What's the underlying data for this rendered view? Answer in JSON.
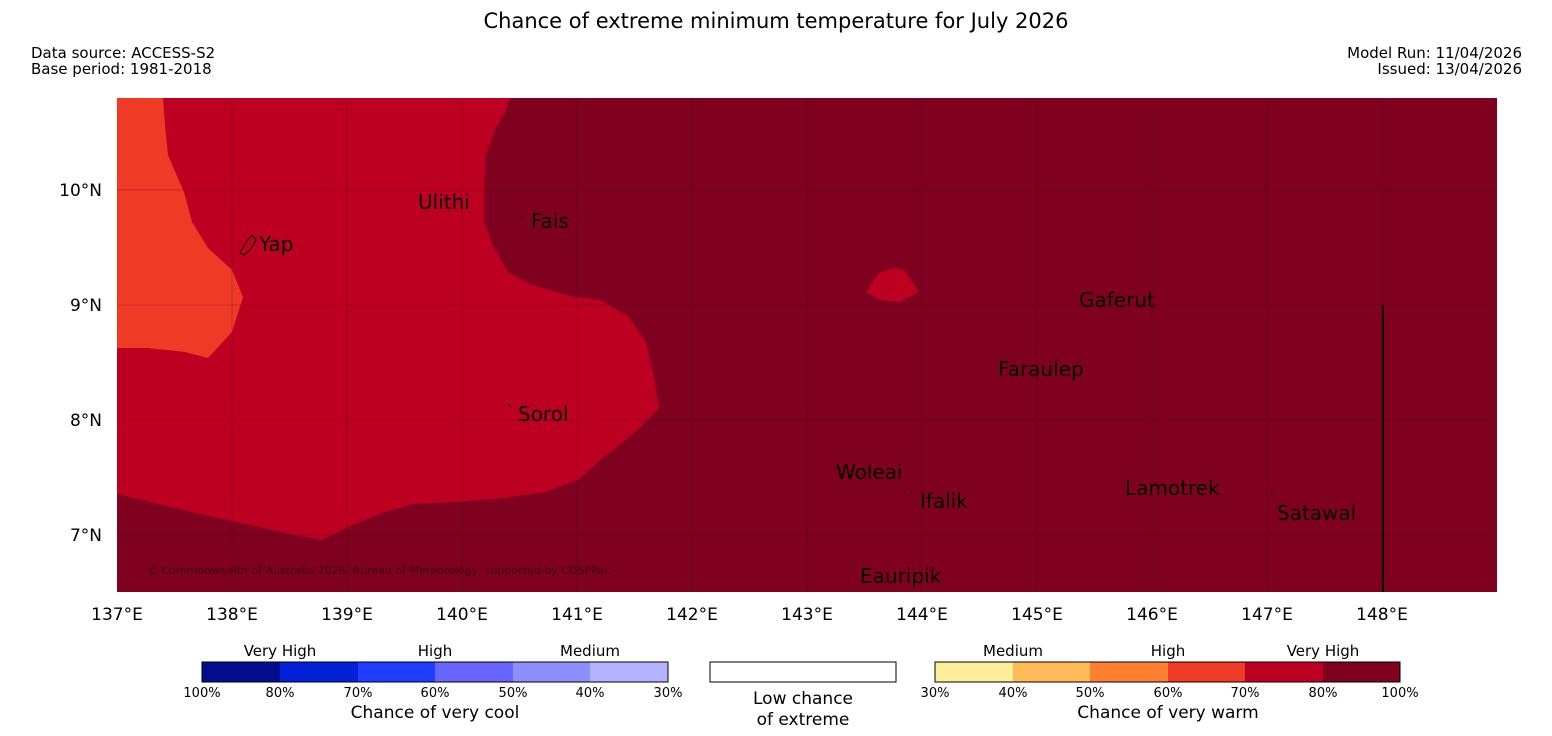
{
  "header": {
    "title": "Chance of extreme minimum temperature for July 2026",
    "data_source": "Data source: ACCESS-S2",
    "base_period": "Base period: 1981-2018",
    "model_run": "Model Run: 11/04/2026",
    "issued": "Issued: 13/04/2026"
  },
  "map": {
    "lat_labels": [
      "10°N",
      "9°N",
      "8°N",
      "7°N"
    ],
    "lon_labels": [
      "137°E",
      "138°E",
      "139°E",
      "140°E",
      "141°E",
      "142°E",
      "143°E",
      "144°E",
      "145°E",
      "146°E",
      "147°E",
      "148°E"
    ],
    "places": [
      "Yap",
      "Ulithi",
      "Fais",
      "Gaferut",
      "Faraulep",
      "Sorol",
      "Woleai",
      "Ifalik",
      "Lamotrek",
      "Satawal",
      "Eauripik"
    ],
    "copyright": "© Commonwealth of Australia 2026, Bureau of Meteorology, supported by COSPPac",
    "colors": {
      "very_high_warm": "#800020",
      "high_warm": "#bd0021",
      "warm_60": "#ef3a25"
    }
  },
  "legend": {
    "cool": {
      "labels": [
        "Very High",
        "High",
        "Medium"
      ],
      "ticks": [
        "100%",
        "80%",
        "70%",
        "60%",
        "50%",
        "40%",
        "30%"
      ],
      "title": "Chance of very cool",
      "colors": [
        "#000e8e",
        "#0021d6",
        "#1e3dff",
        "#6666ff",
        "#8e8eff",
        "#b3b3ff"
      ]
    },
    "neutral": {
      "line1": "Low chance",
      "line2": "of extreme",
      "color": "#ffffff"
    },
    "warm": {
      "labels": [
        "Medium",
        "High",
        "Very High"
      ],
      "ticks": [
        "30%",
        "40%",
        "50%",
        "60%",
        "70%",
        "80%",
        "100%"
      ],
      "title": "Chance of very warm",
      "colors": [
        "#ffee99",
        "#ffbb55",
        "#ff8033",
        "#ef3a25",
        "#bd0021",
        "#800020"
      ]
    }
  }
}
